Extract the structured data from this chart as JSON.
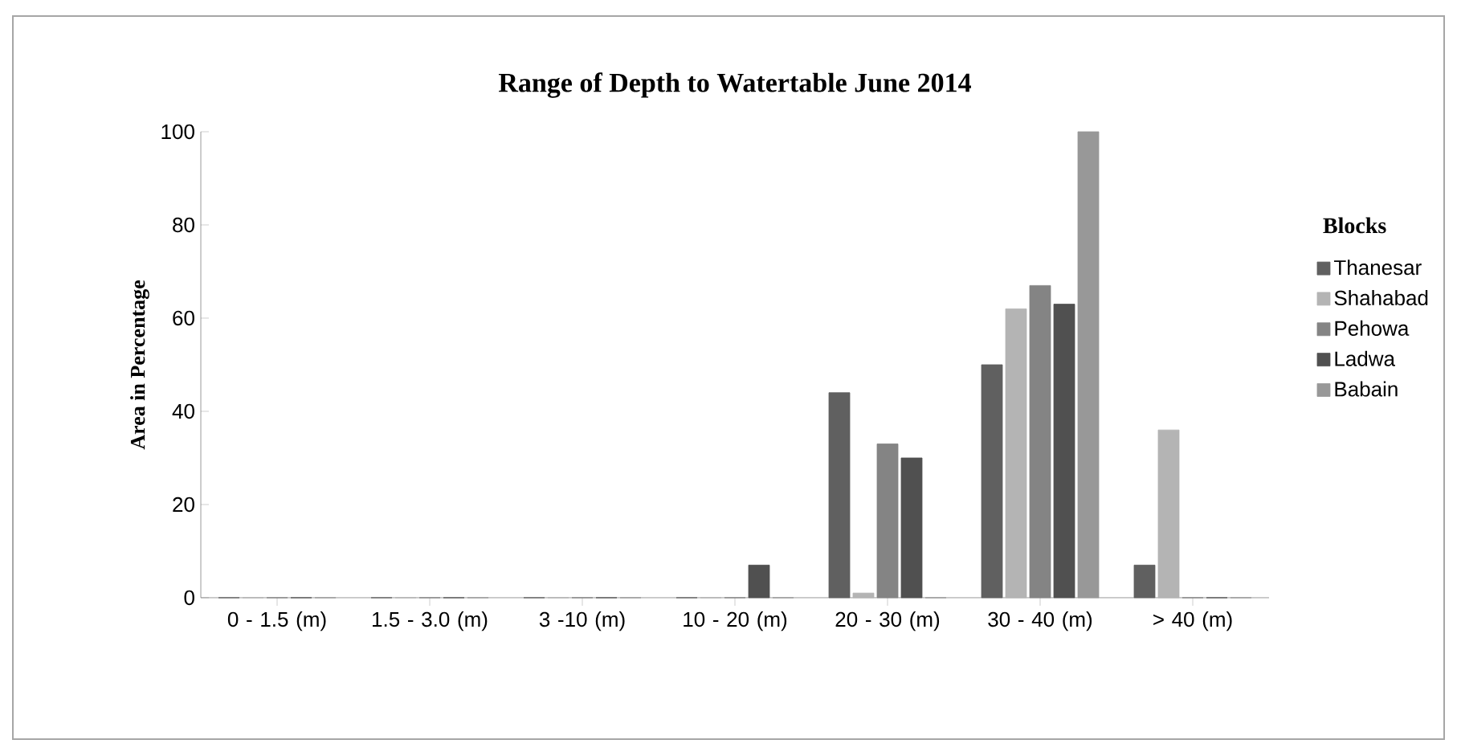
{
  "chart_data": {
    "type": "bar",
    "title": "Range of Depth to Watertable June 2014",
    "ylabel": "Area in Percentage",
    "legend_title": "Blocks",
    "categories": [
      "0 - 1.5 (m)",
      "1.5 - 3.0 (m)",
      "3 -10 (m)",
      "10 - 20 (m)",
      "20 - 30 (m)",
      "30 - 40 (m)",
      "> 40 (m)"
    ],
    "series": [
      {
        "name": "Thanesar",
        "color": "#606060",
        "values": [
          0,
          0,
          0,
          0,
          44,
          50,
          7
        ]
      },
      {
        "name": "Shahabad",
        "color": "#b4b4b4",
        "values": [
          0,
          0,
          0,
          0,
          1,
          62,
          36
        ]
      },
      {
        "name": "Pehowa",
        "color": "#848484",
        "values": [
          0,
          0,
          0,
          0,
          33,
          67,
          0
        ]
      },
      {
        "name": "Ladwa",
        "color": "#505050",
        "values": [
          0,
          0,
          0,
          7,
          30,
          63,
          0
        ]
      },
      {
        "name": "Babain",
        "color": "#989898",
        "values": [
          0,
          0,
          0,
          0,
          0,
          100,
          0
        ]
      }
    ],
    "ylim": [
      0,
      100
    ],
    "yticks": [
      0,
      20,
      40,
      60,
      80,
      100
    ],
    "grid": false,
    "legend": "right"
  }
}
